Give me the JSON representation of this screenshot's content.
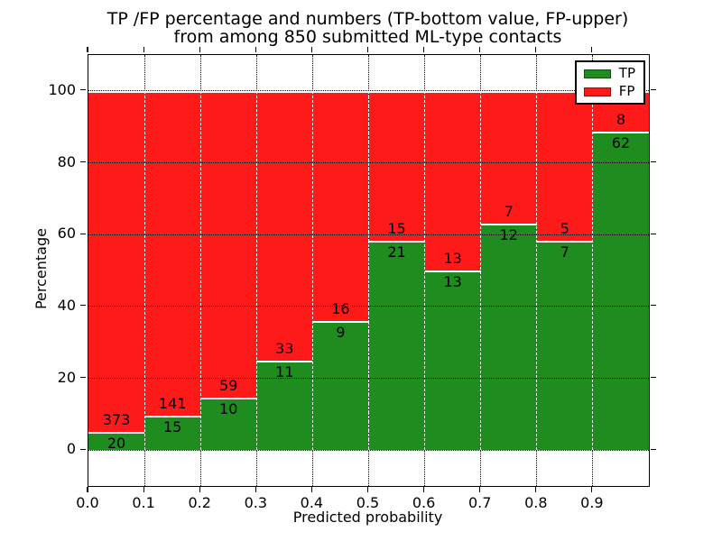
{
  "title": {
    "line1": "TP /FP percentage and numbers (TP-bottom value, FP-upper)",
    "line2": "from among 850 submitted ML-type contacts"
  },
  "chart_data": {
    "type": "bar",
    "stacked": true,
    "title": "TP /FP percentage and numbers (TP-bottom value, FP-upper) from among 850 submitted ML-type contacts",
    "xlabel": "Predicted probability",
    "ylabel": "Percentage",
    "xlim": [
      0.0,
      1.0
    ],
    "ylim": [
      -10,
      110
    ],
    "grid": true,
    "total_contacts": 850,
    "bin_edges": [
      0.0,
      0.1,
      0.2,
      0.3,
      0.4,
      0.5,
      0.6,
      0.7,
      0.8,
      0.9,
      1.0
    ],
    "categories": [
      "0.0-0.1",
      "0.1-0.2",
      "0.2-0.3",
      "0.3-0.4",
      "0.4-0.5",
      "0.5-0.6",
      "0.6-0.7",
      "0.7-0.8",
      "0.8-0.9",
      "0.9-1.0"
    ],
    "x_ticks": [
      "0.0",
      "0.1",
      "0.2",
      "0.3",
      "0.4",
      "0.5",
      "0.6",
      "0.7",
      "0.8",
      "0.9"
    ],
    "y_ticks": [
      "0",
      "20",
      "40",
      "60",
      "80",
      "100"
    ],
    "y_tick_values": [
      0,
      20,
      40,
      60,
      80,
      100
    ],
    "series": [
      {
        "name": "TP",
        "color": "#1e8c1e",
        "counts": [
          20,
          15,
          10,
          11,
          9,
          21,
          13,
          12,
          7,
          62
        ],
        "pct": [
          5.09,
          9.62,
          14.49,
          25.0,
          36.0,
          58.33,
          50.0,
          63.16,
          58.33,
          88.57
        ]
      },
      {
        "name": "FP",
        "color": "#ff1a1a",
        "counts": [
          373,
          141,
          59,
          33,
          16,
          15,
          13,
          7,
          5,
          8
        ],
        "pct": [
          94.91,
          90.38,
          85.51,
          75.0,
          64.0,
          41.67,
          50.0,
          36.84,
          41.67,
          11.43
        ]
      }
    ],
    "legend": {
      "position": "upper right",
      "entries": [
        {
          "label": "TP",
          "color": "#1e8c1e"
        },
        {
          "label": "FP",
          "color": "#ff1a1a"
        }
      ]
    }
  },
  "colors": {
    "tp_green": "#1e8c1e",
    "fp_red": "#ff1a1a",
    "background": "#ffffff",
    "grid": "#000000"
  }
}
